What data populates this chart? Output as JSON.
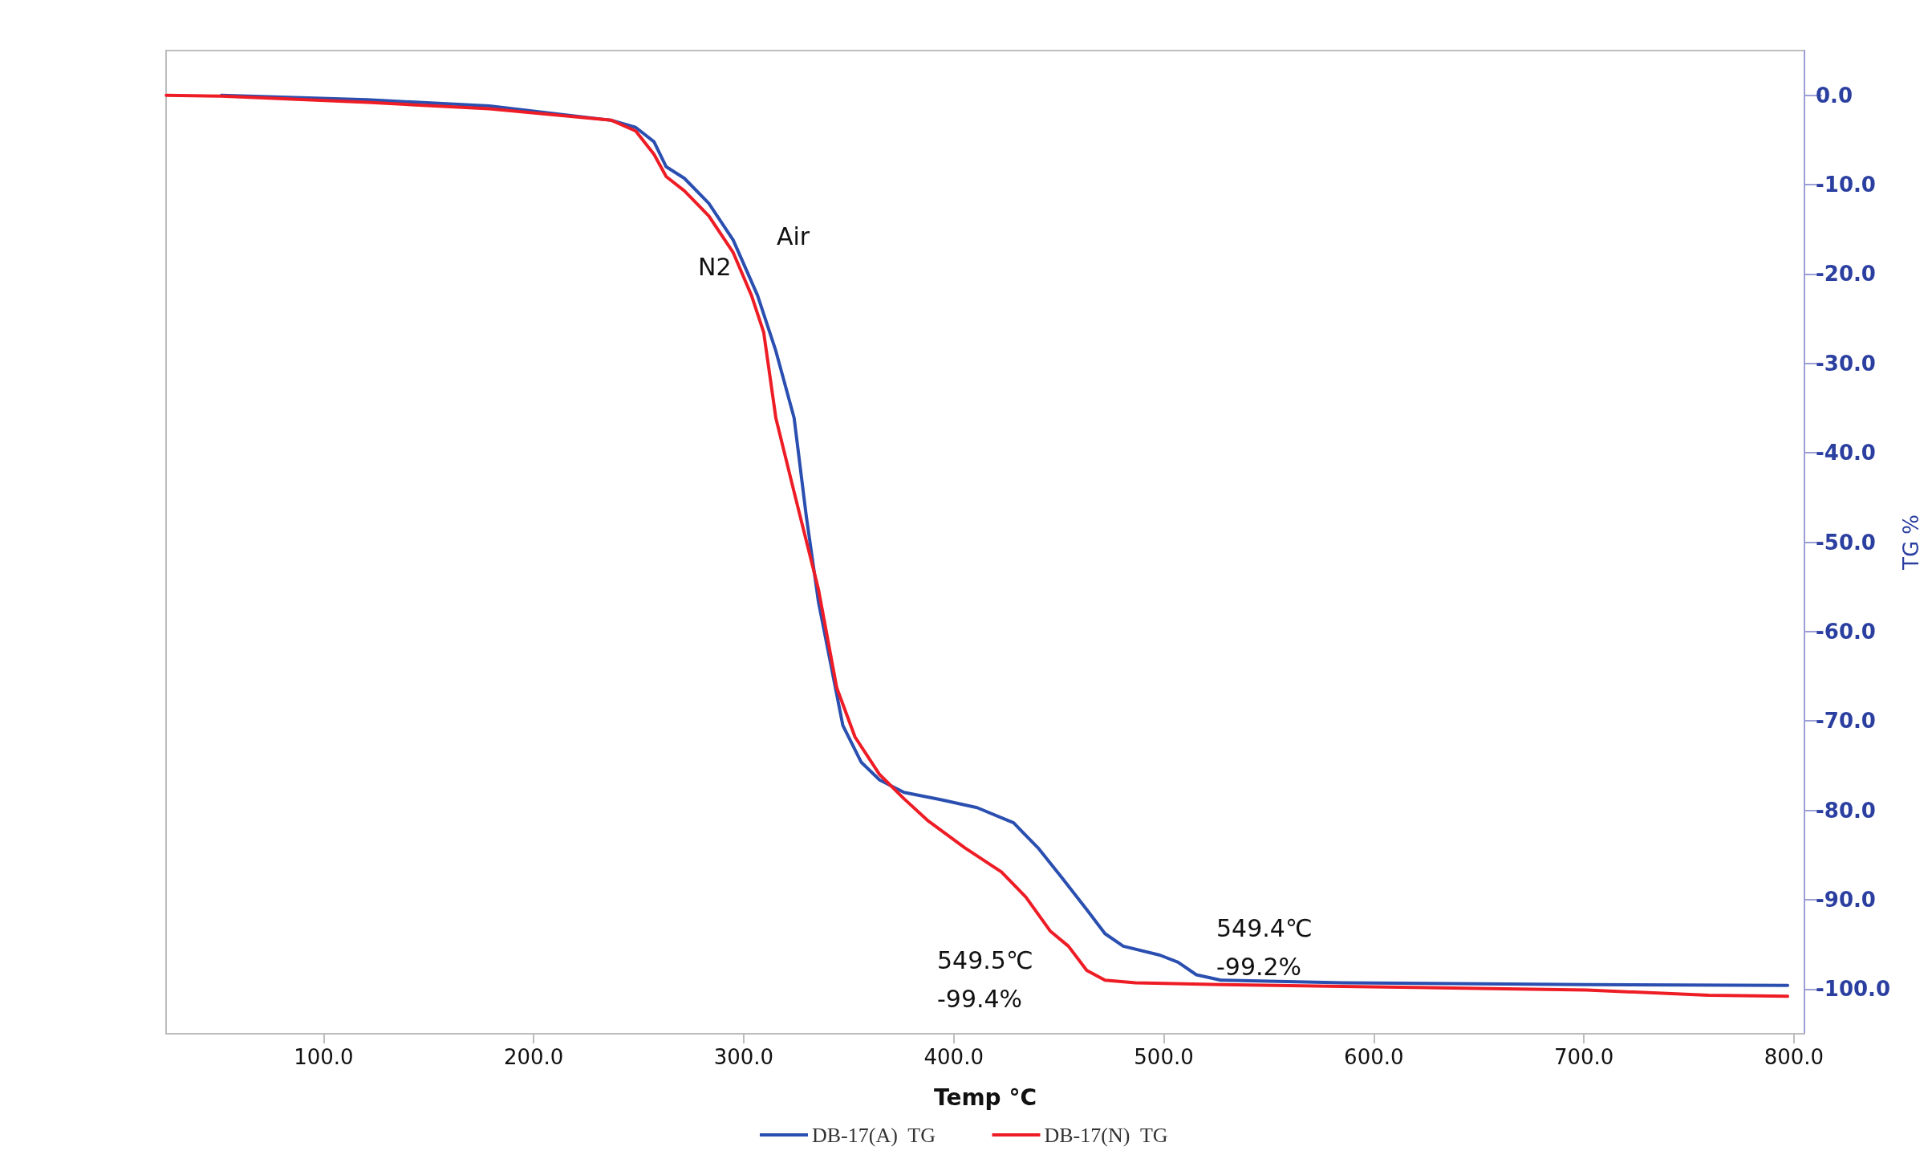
{
  "chart_data": {
    "type": "line",
    "xlabel": "Temp °C",
    "ylabel": "TG %",
    "xlim": [
      25,
      805
    ],
    "ylim": [
      -105,
      5
    ],
    "xticks": [
      {
        "value": 100,
        "label": "100.0"
      },
      {
        "value": 200,
        "label": "200.0"
      },
      {
        "value": 300,
        "label": "300.0"
      },
      {
        "value": 400,
        "label": "400.0"
      },
      {
        "value": 500,
        "label": "500.0"
      },
      {
        "value": 600,
        "label": "600.0"
      },
      {
        "value": 700,
        "label": "700.0"
      },
      {
        "value": 800,
        "label": "800.0"
      }
    ],
    "yticks": [
      {
        "value": 0,
        "label": "0.0"
      },
      {
        "value": -10,
        "label": "-10.0"
      },
      {
        "value": -20,
        "label": "-20.0"
      },
      {
        "value": -30,
        "label": "-30.0"
      },
      {
        "value": -40,
        "label": "-40.0"
      },
      {
        "value": -50,
        "label": "-50.0"
      },
      {
        "value": -60,
        "label": "-60.0"
      },
      {
        "value": -70,
        "label": "-70.0"
      },
      {
        "value": -80,
        "label": "-80.0"
      },
      {
        "value": -90,
        "label": "-90.0"
      },
      {
        "value": -100,
        "label": "-100.0"
      }
    ],
    "grid": false,
    "legend": "bottom",
    "marker": "none",
    "line_style": "solid",
    "series": [
      {
        "name": "DB-17(A)  TG",
        "color": "#2a4fb0",
        "x": [
          51.3,
          120.9,
          178.9,
          237.0,
          248.6,
          257.3,
          263.1,
          271.8,
          283.4,
          295.0,
          306.6,
          315.3,
          324.0,
          329.8,
          335.6,
          341.4,
          347.2,
          355.9,
          364.7,
          376.3,
          393.7,
          411.1,
          428.5,
          440.1,
          451.7,
          463.3,
          472.0,
          480.7,
          498.1,
          506.8,
          515.5,
          527.2,
          585.2,
          701.3,
          797.0
        ],
        "values": [
          0,
          -0.5,
          -1.2,
          -2.8,
          -3.6,
          -5.2,
          -8.0,
          -9.3,
          -12.1,
          -16.2,
          -22.4,
          -28.6,
          -36.1,
          -47.1,
          -56.7,
          -63.6,
          -70.5,
          -74.6,
          -76.6,
          -78.0,
          -78.8,
          -79.7,
          -81.4,
          -84.2,
          -87.6,
          -91.1,
          -93.8,
          -95.2,
          -96.2,
          -97.0,
          -98.4,
          -99.0,
          -99.3,
          -99.5,
          -99.6
        ]
      },
      {
        "name": "DB-17(N)  TG",
        "color": "#ee1c25",
        "x": [
          25.1,
          51.3,
          120.9,
          178.9,
          237.0,
          248.6,
          257.3,
          263.1,
          271.8,
          283.4,
          295.0,
          303.7,
          309.5,
          315.3,
          324.0,
          335.6,
          344.3,
          353.0,
          364.7,
          376.3,
          387.9,
          405.3,
          422.7,
          434.3,
          445.9,
          454.6,
          463.3,
          472.0,
          486.5,
          527.2,
          585.2,
          643.2,
          701.3,
          759.3,
          797.0
        ],
        "values": [
          0,
          -0.1,
          -0.8,
          -1.5,
          -2.8,
          -4.0,
          -6.6,
          -9.1,
          -10.7,
          -13.5,
          -17.6,
          -22.4,
          -26.5,
          -36.1,
          -44.4,
          -55.3,
          -66.3,
          -71.8,
          -76.0,
          -78.7,
          -81.2,
          -84.2,
          -86.9,
          -89.7,
          -93.5,
          -95.2,
          -97.9,
          -99.0,
          -99.3,
          -99.5,
          -99.7,
          -99.9,
          -100.1,
          -100.7,
          -100.8
        ]
      }
    ],
    "annotations": [
      "Air",
      "N2",
      "549.5℃\n-99.4%",
      "549.4℃\n-99.2%"
    ]
  }
}
